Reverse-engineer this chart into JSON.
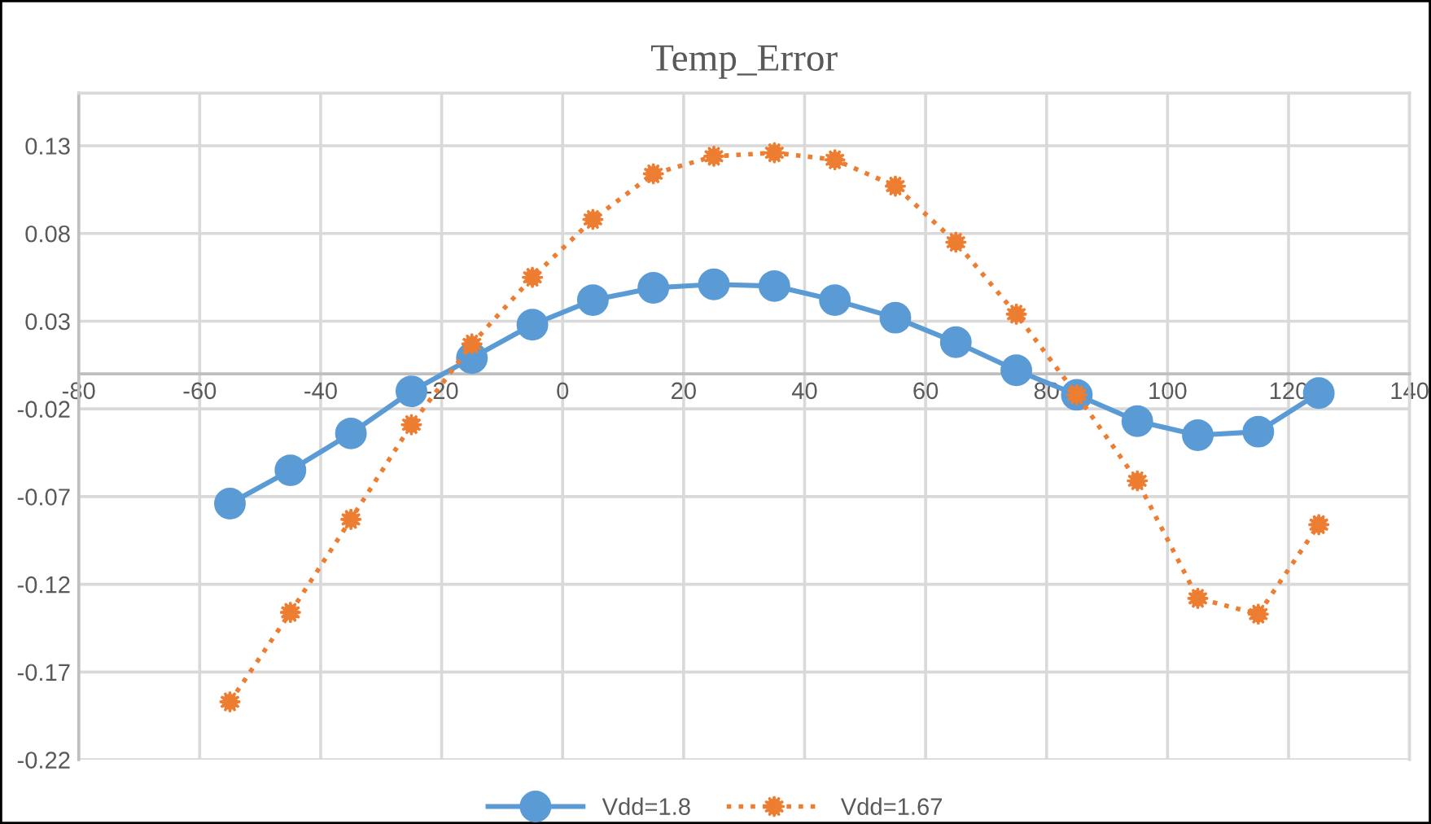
{
  "chart_data": {
    "type": "line",
    "title": "Temp_Error",
    "x": [
      -55,
      -45,
      -35,
      -25,
      -15,
      -5,
      5,
      15,
      25,
      35,
      45,
      55,
      65,
      75,
      85,
      95,
      105,
      115,
      125
    ],
    "series": [
      {
        "name": "Vdd=1.8",
        "color": "#5b9bd5",
        "marker": "circle",
        "line_style": "solid",
        "values": [
          -0.074,
          -0.055,
          -0.034,
          -0.01,
          0.009,
          0.028,
          0.042,
          0.049,
          0.051,
          0.05,
          0.042,
          0.032,
          0.018,
          0.002,
          -0.012,
          -0.027,
          -0.035,
          -0.033,
          -0.011
        ]
      },
      {
        "name": "Vdd=1.67",
        "color": "#ed7d31",
        "marker": "star",
        "line_style": "dotted",
        "values": [
          -0.187,
          -0.136,
          -0.083,
          -0.029,
          0.017,
          0.055,
          0.088,
          0.114,
          0.124,
          0.126,
          0.122,
          0.107,
          0.075,
          0.034,
          -0.012,
          -0.061,
          -0.128,
          -0.137,
          -0.086
        ]
      }
    ],
    "xlim": [
      -80,
      140
    ],
    "xticks": [
      {
        "value": -80,
        "label": "-80"
      },
      {
        "value": -60,
        "label": "-60"
      },
      {
        "value": -40,
        "label": "-40"
      },
      {
        "value": -20,
        "label": "-20"
      },
      0,
      20,
      40,
      60,
      80,
      100,
      120,
      140
    ],
    "ylim": [
      -0.22,
      0.16
    ],
    "yticks": [
      {
        "value": -0.22,
        "label": "-0.22"
      },
      {
        "value": -0.17,
        "label": "-0.17"
      },
      {
        "value": -0.12,
        "label": "-0.12"
      },
      {
        "value": -0.07,
        "label": "-0.07"
      },
      {
        "value": -0.02,
        "label": "-0.02"
      },
      0.03,
      0.08,
      0.13
    ],
    "grid": true,
    "legend": "bottom"
  }
}
